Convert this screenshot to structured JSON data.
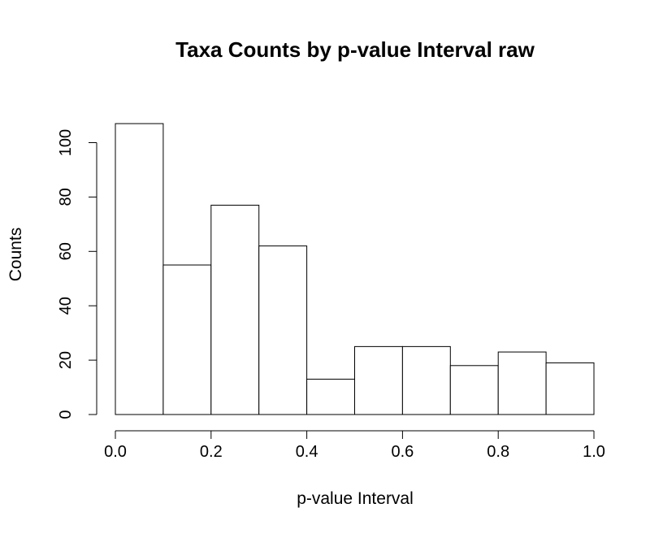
{
  "chart_data": {
    "type": "bar",
    "title": "Taxa Counts by p-value Interval raw",
    "xlabel": "p-value Interval",
    "ylabel": "Counts",
    "bins": [
      {
        "start": 0.0,
        "end": 0.1,
        "count": 107
      },
      {
        "start": 0.1,
        "end": 0.2,
        "count": 55
      },
      {
        "start": 0.2,
        "end": 0.3,
        "count": 77
      },
      {
        "start": 0.3,
        "end": 0.4,
        "count": 62
      },
      {
        "start": 0.4,
        "end": 0.5,
        "count": 13
      },
      {
        "start": 0.5,
        "end": 0.6,
        "count": 25
      },
      {
        "start": 0.6,
        "end": 0.7,
        "count": 25
      },
      {
        "start": 0.7,
        "end": 0.8,
        "count": 18
      },
      {
        "start": 0.8,
        "end": 0.9,
        "count": 23
      },
      {
        "start": 0.9,
        "end": 1.0,
        "count": 19
      }
    ],
    "xlim": [
      0,
      1
    ],
    "ylim": [
      0,
      100
    ],
    "x_ticks": [
      {
        "value": 0.0,
        "label": "0.0"
      },
      {
        "value": 0.2,
        "label": "0.2"
      },
      {
        "value": 0.4,
        "label": "0.4"
      },
      {
        "value": 0.6,
        "label": "0.6"
      },
      {
        "value": 0.8,
        "label": "0.8"
      },
      {
        "value": 1.0,
        "label": "1.0"
      }
    ],
    "y_ticks": [
      {
        "value": 0,
        "label": "0"
      },
      {
        "value": 20,
        "label": "20"
      },
      {
        "value": 40,
        "label": "40"
      },
      {
        "value": 60,
        "label": "60"
      },
      {
        "value": 80,
        "label": "80"
      },
      {
        "value": 100,
        "label": "100"
      }
    ],
    "grid": false,
    "legend": "none"
  }
}
